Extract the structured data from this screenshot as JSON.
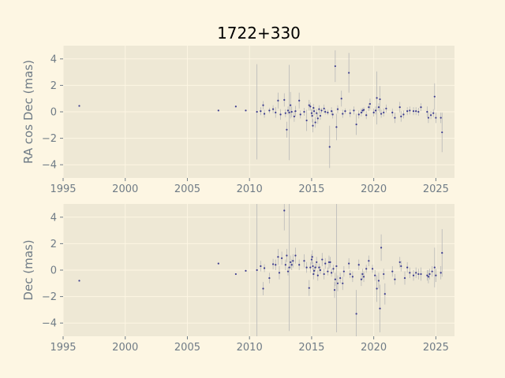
{
  "chart_data": [
    {
      "type": "scatter",
      "title": "1722+330",
      "xlabel": "",
      "ylabel": "RA cos Dec (mas)",
      "xlim": [
        1995,
        2026.5
      ],
      "ylim": [
        -5,
        5
      ],
      "xticks": [
        1995,
        2000,
        2005,
        2010,
        2015,
        2020,
        2025
      ],
      "yticks": [
        -4,
        -2,
        0,
        2,
        4
      ],
      "grid": true,
      "colors": {
        "point": "#3b3b8f",
        "errorbar": "#b8b8b8"
      },
      "points": [
        {
          "x": 1996.3,
          "y": 0.45,
          "e": 0.0
        },
        {
          "x": 2007.5,
          "y": 0.1,
          "e": 0.0
        },
        {
          "x": 2008.9,
          "y": 0.4,
          "e": 0.0
        },
        {
          "x": 2009.7,
          "y": 0.1,
          "e": 0.0
        },
        {
          "x": 2010.6,
          "y": 0.0,
          "e": 3.6
        },
        {
          "x": 2010.9,
          "y": 0.05,
          "e": 0.3
        },
        {
          "x": 2011.1,
          "y": 0.5,
          "e": 0.3
        },
        {
          "x": 2011.2,
          "y": -0.15,
          "e": 0.3
        },
        {
          "x": 2011.6,
          "y": 0.1,
          "e": 0.2
        },
        {
          "x": 2011.9,
          "y": 0.2,
          "e": 0.3
        },
        {
          "x": 2012.1,
          "y": -0.05,
          "e": 0.4
        },
        {
          "x": 2012.3,
          "y": 0.85,
          "e": 0.6
        },
        {
          "x": 2012.5,
          "y": -0.2,
          "e": 0.4
        },
        {
          "x": 2012.8,
          "y": 0.9,
          "e": 0.5
        },
        {
          "x": 2012.9,
          "y": -0.1,
          "e": 0.3
        },
        {
          "x": 2013.0,
          "y": -1.35,
          "e": 0.6
        },
        {
          "x": 2013.1,
          "y": 0.1,
          "e": 0.3
        },
        {
          "x": 2013.2,
          "y": -0.05,
          "e": 3.6
        },
        {
          "x": 2013.3,
          "y": 0.5,
          "e": 1.0
        },
        {
          "x": 2013.4,
          "y": 0.0,
          "e": 0.4
        },
        {
          "x": 2013.6,
          "y": -0.35,
          "e": 0.4
        },
        {
          "x": 2013.7,
          "y": 0.05,
          "e": 0.4
        },
        {
          "x": 2014.0,
          "y": 0.85,
          "e": 0.6
        },
        {
          "x": 2014.1,
          "y": -0.2,
          "e": 0.3
        },
        {
          "x": 2014.4,
          "y": 0.0,
          "e": 0.3
        },
        {
          "x": 2014.6,
          "y": -0.65,
          "e": 0.8
        },
        {
          "x": 2014.8,
          "y": 0.5,
          "e": 0.4
        },
        {
          "x": 2014.9,
          "y": 0.4,
          "e": 0.3
        },
        {
          "x": 2015.0,
          "y": -0.1,
          "e": 0.3
        },
        {
          "x": 2015.05,
          "y": -0.3,
          "e": 0.5
        },
        {
          "x": 2015.1,
          "y": -1.05,
          "e": 0.5
        },
        {
          "x": 2015.15,
          "y": 0.3,
          "e": 0.3
        },
        {
          "x": 2015.2,
          "y": 0.05,
          "e": 0.3
        },
        {
          "x": 2015.3,
          "y": -0.8,
          "e": 0.4
        },
        {
          "x": 2015.4,
          "y": -0.1,
          "e": 0.3
        },
        {
          "x": 2015.5,
          "y": -0.5,
          "e": 0.4
        },
        {
          "x": 2015.6,
          "y": 0.2,
          "e": 0.3
        },
        {
          "x": 2015.7,
          "y": -0.3,
          "e": 0.3
        },
        {
          "x": 2015.8,
          "y": 0.1,
          "e": 0.2
        },
        {
          "x": 2016.0,
          "y": 0.25,
          "e": 0.3
        },
        {
          "x": 2016.1,
          "y": 0.0,
          "e": 0.2
        },
        {
          "x": 2016.3,
          "y": -0.05,
          "e": 0.2
        },
        {
          "x": 2016.45,
          "y": -2.65,
          "e": 1.6
        },
        {
          "x": 2016.6,
          "y": 0.05,
          "e": 0.3
        },
        {
          "x": 2016.7,
          "y": -0.2,
          "e": 0.3
        },
        {
          "x": 2016.9,
          "y": 3.45,
          "e": 1.2
        },
        {
          "x": 2017.0,
          "y": -1.15,
          "e": 1.0
        },
        {
          "x": 2017.1,
          "y": 0.2,
          "e": 0.3
        },
        {
          "x": 2017.4,
          "y": 1.0,
          "e": 0.6
        },
        {
          "x": 2017.5,
          "y": -0.15,
          "e": 0.3
        },
        {
          "x": 2017.7,
          "y": 0.05,
          "e": 0.2
        },
        {
          "x": 2018.0,
          "y": 2.95,
          "e": 1.5
        },
        {
          "x": 2018.1,
          "y": -0.1,
          "e": 0.3
        },
        {
          "x": 2018.4,
          "y": 0.1,
          "e": 0.3
        },
        {
          "x": 2018.6,
          "y": -0.95,
          "e": 0.8
        },
        {
          "x": 2018.8,
          "y": -0.2,
          "e": 0.3
        },
        {
          "x": 2019.0,
          "y": -0.05,
          "e": 0.3
        },
        {
          "x": 2019.1,
          "y": 0.1,
          "e": 0.2
        },
        {
          "x": 2019.2,
          "y": 0.15,
          "e": 0.2
        },
        {
          "x": 2019.4,
          "y": -0.25,
          "e": 0.3
        },
        {
          "x": 2019.6,
          "y": 0.35,
          "e": 0.3
        },
        {
          "x": 2019.7,
          "y": 0.6,
          "e": 0.4
        },
        {
          "x": 2020.0,
          "y": -0.05,
          "e": 0.3
        },
        {
          "x": 2020.15,
          "y": 0.1,
          "e": 0.3
        },
        {
          "x": 2020.25,
          "y": 1.05,
          "e": 2.0
        },
        {
          "x": 2020.4,
          "y": 0.35,
          "e": 0.3
        },
        {
          "x": 2020.5,
          "y": 0.95,
          "e": 1.0
        },
        {
          "x": 2020.6,
          "y": -0.15,
          "e": 0.3
        },
        {
          "x": 2020.8,
          "y": -0.05,
          "e": 0.3
        },
        {
          "x": 2021.0,
          "y": 0.25,
          "e": 0.3
        },
        {
          "x": 2021.5,
          "y": -0.05,
          "e": 0.3
        },
        {
          "x": 2021.7,
          "y": -0.45,
          "e": 0.4
        },
        {
          "x": 2022.1,
          "y": 0.35,
          "e": 0.4
        },
        {
          "x": 2022.2,
          "y": -0.35,
          "e": 0.4
        },
        {
          "x": 2022.4,
          "y": -0.2,
          "e": 0.3
        },
        {
          "x": 2022.7,
          "y": 0.05,
          "e": 0.3
        },
        {
          "x": 2022.9,
          "y": 0.1,
          "e": 0.3
        },
        {
          "x": 2023.2,
          "y": 0.05,
          "e": 0.3
        },
        {
          "x": 2023.4,
          "y": 0.05,
          "e": 0.3
        },
        {
          "x": 2023.6,
          "y": 0.0,
          "e": 0.3
        },
        {
          "x": 2023.8,
          "y": 0.35,
          "e": 0.3
        },
        {
          "x": 2024.3,
          "y": 0.0,
          "e": 0.4
        },
        {
          "x": 2024.4,
          "y": -0.45,
          "e": 0.4
        },
        {
          "x": 2024.6,
          "y": -0.25,
          "e": 0.3
        },
        {
          "x": 2024.8,
          "y": -0.1,
          "e": 0.3
        },
        {
          "x": 2024.9,
          "y": 1.15,
          "e": 1.0
        },
        {
          "x": 2025.0,
          "y": -0.45,
          "e": 0.4
        },
        {
          "x": 2025.4,
          "y": -0.45,
          "e": 0.4
        },
        {
          "x": 2025.5,
          "y": -1.55,
          "e": 1.5
        }
      ]
    },
    {
      "type": "scatter",
      "title": "",
      "xlabel": "",
      "ylabel": "Dec (mas)",
      "xlim": [
        1995,
        2026.5
      ],
      "ylim": [
        -5,
        5
      ],
      "xticks": [
        1995,
        2000,
        2005,
        2010,
        2015,
        2020,
        2025
      ],
      "yticks": [
        -4,
        -2,
        0,
        2,
        4
      ],
      "grid": true,
      "colors": {
        "point": "#3b3b8f",
        "errorbar": "#b8b8b8"
      },
      "points": [
        {
          "x": 1996.3,
          "y": -0.8,
          "e": 0.0
        },
        {
          "x": 2007.5,
          "y": 0.5,
          "e": 0.0
        },
        {
          "x": 2008.9,
          "y": -0.3,
          "e": 0.0
        },
        {
          "x": 2009.7,
          "y": -0.05,
          "e": 0.0
        },
        {
          "x": 2010.6,
          "y": 0.0,
          "e": 5.0
        },
        {
          "x": 2010.9,
          "y": 0.3,
          "e": 0.4
        },
        {
          "x": 2011.1,
          "y": -1.4,
          "e": 0.5
        },
        {
          "x": 2011.2,
          "y": 0.15,
          "e": 0.3
        },
        {
          "x": 2011.6,
          "y": -0.6,
          "e": 0.4
        },
        {
          "x": 2011.9,
          "y": 0.45,
          "e": 0.4
        },
        {
          "x": 2012.1,
          "y": 0.4,
          "e": 0.4
        },
        {
          "x": 2012.3,
          "y": 1.0,
          "e": 0.6
        },
        {
          "x": 2012.4,
          "y": -0.2,
          "e": 0.5
        },
        {
          "x": 2012.6,
          "y": 0.9,
          "e": 0.5
        },
        {
          "x": 2012.8,
          "y": 4.5,
          "e": 1.5
        },
        {
          "x": 2012.9,
          "y": 0.4,
          "e": 0.4
        },
        {
          "x": 2013.0,
          "y": 1.1,
          "e": 0.5
        },
        {
          "x": 2013.1,
          "y": -0.1,
          "e": 0.3
        },
        {
          "x": 2013.2,
          "y": 0.2,
          "e": 4.8
        },
        {
          "x": 2013.3,
          "y": 0.6,
          "e": 0.5
        },
        {
          "x": 2013.4,
          "y": 0.4,
          "e": 0.4
        },
        {
          "x": 2013.5,
          "y": 0.7,
          "e": 0.5
        },
        {
          "x": 2013.7,
          "y": 1.1,
          "e": 0.6
        },
        {
          "x": 2014.0,
          "y": 0.4,
          "e": 0.4
        },
        {
          "x": 2014.4,
          "y": 0.7,
          "e": 0.5
        },
        {
          "x": 2014.6,
          "y": 0.2,
          "e": 0.4
        },
        {
          "x": 2014.8,
          "y": -1.35,
          "e": 0.6
        },
        {
          "x": 2014.9,
          "y": 0.2,
          "e": 0.4
        },
        {
          "x": 2015.0,
          "y": 0.8,
          "e": 0.4
        },
        {
          "x": 2015.05,
          "y": 1.0,
          "e": 0.5
        },
        {
          "x": 2015.1,
          "y": 0.3,
          "e": 0.3
        },
        {
          "x": 2015.15,
          "y": -0.3,
          "e": 0.4
        },
        {
          "x": 2015.2,
          "y": -0.05,
          "e": 0.3
        },
        {
          "x": 2015.3,
          "y": 0.2,
          "e": 0.3
        },
        {
          "x": 2015.4,
          "y": 0.6,
          "e": 0.4
        },
        {
          "x": 2015.5,
          "y": -0.4,
          "e": 0.4
        },
        {
          "x": 2015.6,
          "y": 0.2,
          "e": 0.3
        },
        {
          "x": 2015.7,
          "y": 0.0,
          "e": 0.3
        },
        {
          "x": 2015.85,
          "y": 0.8,
          "e": 0.5
        },
        {
          "x": 2016.0,
          "y": -0.3,
          "e": 0.4
        },
        {
          "x": 2016.1,
          "y": 0.5,
          "e": 0.4
        },
        {
          "x": 2016.3,
          "y": -0.1,
          "e": 0.3
        },
        {
          "x": 2016.4,
          "y": 0.6,
          "e": 0.5
        },
        {
          "x": 2016.5,
          "y": 0.6,
          "e": 0.4
        },
        {
          "x": 2016.6,
          "y": -0.2,
          "e": 0.3
        },
        {
          "x": 2016.75,
          "y": 0.1,
          "e": 0.3
        },
        {
          "x": 2016.85,
          "y": -1.5,
          "e": 0.6
        },
        {
          "x": 2016.9,
          "y": -0.7,
          "e": 0.5
        },
        {
          "x": 2017.0,
          "y": 0.3,
          "e": 5.0
        },
        {
          "x": 2017.1,
          "y": -1.0,
          "e": 0.6
        },
        {
          "x": 2017.3,
          "y": -0.6,
          "e": 0.4
        },
        {
          "x": 2017.5,
          "y": -1.0,
          "e": 0.5
        },
        {
          "x": 2017.6,
          "y": -0.1,
          "e": 0.4
        },
        {
          "x": 2018.0,
          "y": 0.5,
          "e": 0.4
        },
        {
          "x": 2018.1,
          "y": -0.3,
          "e": 0.3
        },
        {
          "x": 2018.3,
          "y": -0.5,
          "e": 0.4
        },
        {
          "x": 2018.6,
          "y": -3.3,
          "e": 1.8
        },
        {
          "x": 2018.8,
          "y": 0.4,
          "e": 0.4
        },
        {
          "x": 2019.0,
          "y": -0.7,
          "e": 0.5
        },
        {
          "x": 2019.1,
          "y": -0.3,
          "e": 0.4
        },
        {
          "x": 2019.2,
          "y": -0.5,
          "e": 0.4
        },
        {
          "x": 2019.4,
          "y": 0.1,
          "e": 0.3
        },
        {
          "x": 2019.6,
          "y": 0.7,
          "e": 0.4
        },
        {
          "x": 2019.9,
          "y": 0.1,
          "e": 0.3
        },
        {
          "x": 2020.1,
          "y": -0.4,
          "e": 0.4
        },
        {
          "x": 2020.25,
          "y": -1.4,
          "e": 1.0
        },
        {
          "x": 2020.4,
          "y": -0.8,
          "e": 0.6
        },
        {
          "x": 2020.5,
          "y": -2.9,
          "e": 1.8
        },
        {
          "x": 2020.6,
          "y": 1.7,
          "e": 1.0
        },
        {
          "x": 2020.8,
          "y": -0.3,
          "e": 0.4
        },
        {
          "x": 2020.9,
          "y": -1.8,
          "e": 0.8
        },
        {
          "x": 2021.5,
          "y": -0.1,
          "e": 0.4
        },
        {
          "x": 2021.7,
          "y": -0.7,
          "e": 0.4
        },
        {
          "x": 2022.1,
          "y": 0.6,
          "e": 0.4
        },
        {
          "x": 2022.2,
          "y": 0.3,
          "e": 0.4
        },
        {
          "x": 2022.5,
          "y": -0.6,
          "e": 0.5
        },
        {
          "x": 2022.7,
          "y": 0.2,
          "e": 0.4
        },
        {
          "x": 2022.9,
          "y": -0.2,
          "e": 0.4
        },
        {
          "x": 2023.2,
          "y": -0.4,
          "e": 0.4
        },
        {
          "x": 2023.4,
          "y": -0.2,
          "e": 0.4
        },
        {
          "x": 2023.6,
          "y": -0.3,
          "e": 0.4
        },
        {
          "x": 2023.8,
          "y": -0.3,
          "e": 0.5
        },
        {
          "x": 2024.3,
          "y": -0.4,
          "e": 0.4
        },
        {
          "x": 2024.4,
          "y": -0.5,
          "e": 0.5
        },
        {
          "x": 2024.5,
          "y": -0.3,
          "e": 0.4
        },
        {
          "x": 2024.7,
          "y": -0.1,
          "e": 0.4
        },
        {
          "x": 2024.9,
          "y": 0.2,
          "e": 1.5
        },
        {
          "x": 2025.0,
          "y": -0.4,
          "e": 0.5
        },
        {
          "x": 2025.4,
          "y": -0.2,
          "e": 0.5
        },
        {
          "x": 2025.5,
          "y": 1.3,
          "e": 1.8
        }
      ]
    }
  ]
}
